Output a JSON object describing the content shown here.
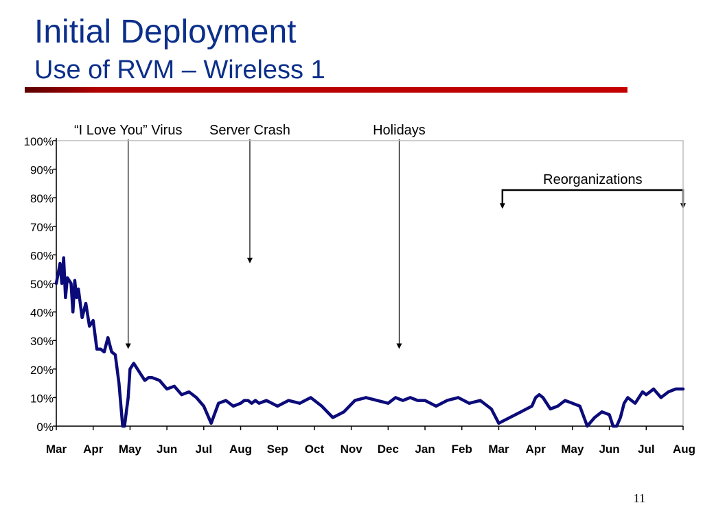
{
  "slide": {
    "title": "Initial Deployment",
    "subtitle": "Use of RVM – Wireless 1",
    "page_number": "11"
  },
  "colors": {
    "title": "#0b2f8a",
    "rule": "#c40000",
    "series": "#0b0b7a"
  },
  "chart_data": {
    "type": "line",
    "title": "",
    "xlabel": "",
    "ylabel": "",
    "x_ticks": [
      "Mar",
      "Apr",
      "May",
      "Jun",
      "Jul",
      "Aug",
      "Sep",
      "Oct",
      "Nov",
      "Dec",
      "Jan",
      "Feb",
      "Mar",
      "Apr",
      "May",
      "Jun",
      "Jul",
      "Aug"
    ],
    "y_ticks": [
      "0%",
      "10%",
      "20%",
      "30%",
      "40%",
      "50%",
      "60%",
      "70%",
      "80%",
      "90%",
      "100%"
    ],
    "ylim": [
      0,
      100
    ],
    "grid": false,
    "legend": "none",
    "series": [
      {
        "x_month_index": [
          0,
          0.1,
          0.15,
          0.2,
          0.25,
          0.3,
          0.4,
          0.45,
          0.5,
          0.55,
          0.6,
          0.7,
          0.8,
          0.9,
          1.0,
          1.1,
          1.2,
          1.3,
          1.4,
          1.5,
          1.6,
          1.7,
          1.8,
          1.85,
          1.9,
          1.95,
          2.0,
          2.1,
          2.2,
          2.3,
          2.4,
          2.5,
          2.6,
          2.8,
          3.0,
          3.2,
          3.4,
          3.6,
          3.8,
          4.0,
          4.2,
          4.4,
          4.6,
          4.8,
          5.0,
          5.1,
          5.2,
          5.3,
          5.4,
          5.5,
          5.7,
          6.0,
          6.3,
          6.6,
          6.9,
          7.2,
          7.5,
          7.8,
          8.1,
          8.4,
          8.7,
          9.0,
          9.2,
          9.4,
          9.6,
          9.8,
          10.0,
          10.3,
          10.6,
          10.9,
          11.2,
          11.5,
          11.8,
          12.0,
          12.3,
          12.6,
          12.9,
          13.0,
          13.1,
          13.2,
          13.4,
          13.6,
          13.8,
          14.0,
          14.2,
          14.4,
          14.6,
          14.8,
          15.0,
          15.1,
          15.2,
          15.3,
          15.4,
          15.5,
          15.6,
          15.7,
          15.8,
          15.9,
          16.0,
          16.1,
          16.2,
          16.4,
          16.6,
          16.8,
          17.0
        ],
        "y_percent": [
          50,
          57,
          50,
          59,
          45,
          52,
          50,
          40,
          51,
          45,
          48,
          38,
          43,
          35,
          37,
          27,
          27,
          26,
          31,
          26,
          25,
          15,
          0,
          0,
          5,
          10,
          20,
          22,
          20,
          18,
          16,
          17,
          17,
          16,
          13,
          14,
          11,
          12,
          10,
          7,
          1,
          8,
          9,
          7,
          8,
          9,
          9,
          8,
          9,
          8,
          9,
          7,
          9,
          8,
          10,
          7,
          3,
          5,
          9,
          10,
          9,
          8,
          10,
          9,
          10,
          9,
          9,
          7,
          9,
          10,
          8,
          9,
          6,
          1,
          3,
          5,
          7,
          10,
          11,
          10,
          6,
          7,
          9,
          8,
          7,
          0,
          3,
          5,
          4,
          0,
          0,
          3,
          8,
          10,
          9,
          8,
          10,
          12,
          11,
          12,
          13,
          10,
          12,
          13,
          13
        ]
      }
    ],
    "annotations": [
      {
        "text": "“I Love You” Virus",
        "x_month_index": 1.95,
        "y_percent": 28
      },
      {
        "text": "Server Crash",
        "x_month_index": 5.25,
        "y_percent": 58
      },
      {
        "text": "Holidays",
        "x_month_index": 9.3,
        "y_percent": 28
      },
      {
        "text": "Reorganizations",
        "x_start_month_index": 12.1,
        "x_end_month_index": 17.0,
        "y_percent": 80
      }
    ]
  }
}
